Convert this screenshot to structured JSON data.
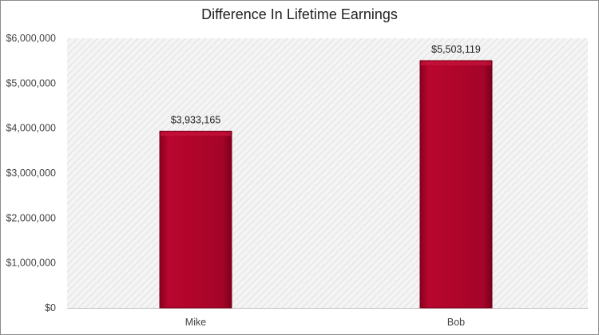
{
  "chart_data": {
    "type": "bar",
    "title": "Difference In Lifetime Earnings",
    "categories": [
      "Mike",
      "Bob"
    ],
    "values": [
      3933165,
      5503119
    ],
    "data_labels": [
      "$3,933,165",
      "$5,503,119"
    ],
    "ylim": [
      0,
      6000000
    ],
    "yticks": [
      0,
      1000000,
      2000000,
      3000000,
      4000000,
      5000000,
      6000000
    ],
    "ytick_labels": [
      "$0",
      "$1,000,000",
      "$2,000,000",
      "$3,000,000",
      "$4,000,000",
      "$5,000,000",
      "$6,000,000"
    ],
    "grid": false,
    "legend": "none",
    "colors": {
      "bar": "#b0052a",
      "bar_edge": "#7a0019",
      "plot_background": "#f2f2f2",
      "hatch": "#dcdcdc"
    }
  }
}
